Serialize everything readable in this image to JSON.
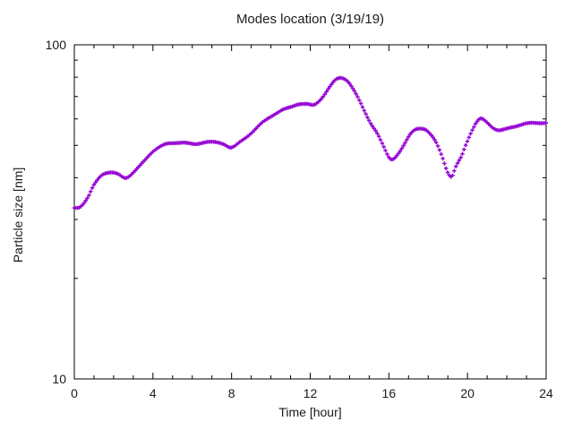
{
  "colors": {
    "background": "#ffffff",
    "axis": "#000000",
    "text": "#1a1a1a"
  },
  "chart_data": {
    "type": "scatter",
    "title": "Modes location (3/19/19)",
    "xlabel": "Time [hour]",
    "ylabel": "Particle size [nm]",
    "xlim": [
      0,
      24
    ],
    "ylim": [
      10,
      100
    ],
    "yscale": "log",
    "grid": false,
    "legend": "none",
    "marker": "plus",
    "series_color": "#9400D3",
    "x_major_ticks": [
      0,
      4,
      8,
      12,
      16,
      20,
      24
    ],
    "x_minor_step": 1,
    "y_major_ticks": [
      10,
      100
    ],
    "y_minor_ticks": [
      20,
      30,
      40,
      50,
      60,
      70,
      80,
      90
    ],
    "sample_step_hours": 0.0833,
    "points": [
      [
        0.0,
        32.5
      ],
      [
        0.3,
        32.8
      ],
      [
        0.7,
        35.0
      ],
      [
        1.0,
        38.0
      ],
      [
        1.4,
        40.8
      ],
      [
        1.8,
        41.5
      ],
      [
        2.2,
        41.0
      ],
      [
        2.6,
        40.0
      ],
      [
        3.0,
        41.5
      ],
      [
        3.5,
        44.5
      ],
      [
        4.0,
        48.0
      ],
      [
        4.5,
        50.0
      ],
      [
        5.0,
        50.8
      ],
      [
        5.5,
        51.0
      ],
      [
        6.1,
        50.4
      ],
      [
        6.7,
        51.2
      ],
      [
        7.2,
        51.0
      ],
      [
        7.6,
        50.5
      ],
      [
        8.0,
        49.3
      ],
      [
        8.5,
        51.5
      ],
      [
        9.0,
        54.5
      ],
      [
        9.5,
        58.0
      ],
      [
        10.0,
        61.0
      ],
      [
        10.5,
        63.5
      ],
      [
        11.0,
        65.0
      ],
      [
        11.4,
        66.5
      ],
      [
        11.8,
        66.5
      ],
      [
        12.2,
        66.0
      ],
      [
        12.6,
        69.5
      ],
      [
        13.0,
        75.0
      ],
      [
        13.3,
        78.5
      ],
      [
        13.6,
        79.5
      ],
      [
        13.9,
        78.0
      ],
      [
        14.2,
        73.5
      ],
      [
        14.5,
        68.0
      ],
      [
        14.8,
        62.5
      ],
      [
        15.1,
        58.0
      ],
      [
        15.4,
        54.5
      ],
      [
        15.7,
        50.0
      ],
      [
        16.0,
        46.0
      ],
      [
        16.2,
        45.5
      ],
      [
        16.5,
        47.5
      ],
      [
        16.8,
        50.5
      ],
      [
        17.1,
        54.0
      ],
      [
        17.4,
        56.0
      ],
      [
        17.8,
        56.0
      ],
      [
        18.1,
        54.0
      ],
      [
        18.4,
        51.0
      ],
      [
        18.7,
        46.5
      ],
      [
        19.0,
        41.5
      ],
      [
        19.2,
        40.3
      ],
      [
        19.4,
        43.0
      ],
      [
        19.7,
        46.5
      ],
      [
        19.9,
        50.0
      ],
      [
        20.2,
        55.0
      ],
      [
        20.5,
        59.0
      ],
      [
        20.7,
        60.0
      ],
      [
        21.0,
        58.5
      ],
      [
        21.3,
        56.5
      ],
      [
        21.6,
        55.5
      ],
      [
        22.0,
        56.0
      ],
      [
        22.4,
        57.0
      ],
      [
        22.9,
        58.0
      ],
      [
        23.4,
        58.3
      ],
      [
        24.0,
        58.5
      ]
    ]
  }
}
